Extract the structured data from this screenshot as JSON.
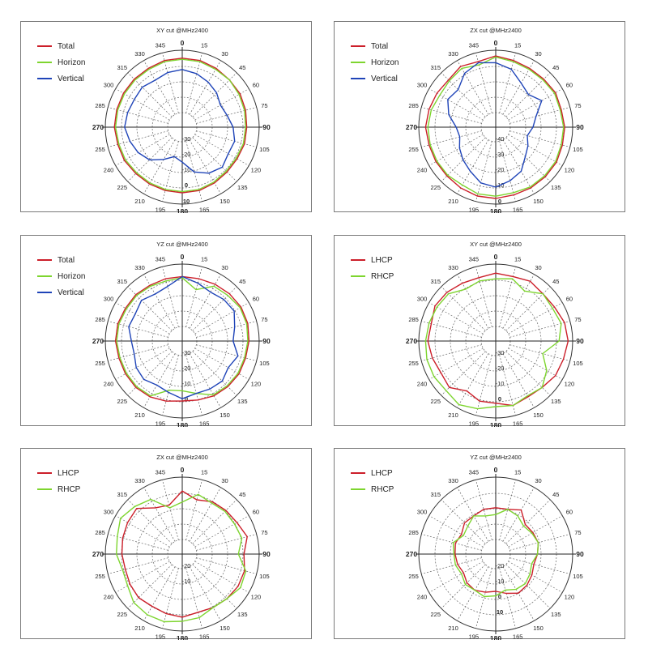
{
  "colors": {
    "total": "#cc1f2a",
    "horizon": "#7ed52f",
    "vertical": "#1f44b8",
    "lhcp": "#cc1f2a",
    "rhcp": "#7ed52f"
  },
  "chart_data": [
    {
      "type": "polar",
      "title": "XY cut @MHz2400",
      "radial_ticks": [
        "-30",
        "-20",
        "-10",
        "0",
        "10"
      ],
      "angle_labels": [
        "0",
        "15",
        "30",
        "45",
        "60",
        "75",
        "90",
        "105",
        "120",
        "135",
        "150",
        "165",
        "180",
        "195",
        "210",
        "225",
        "240",
        "255",
        "270",
        "285",
        "300",
        "315",
        "330",
        "345"
      ],
      "rmin": -40,
      "rmax": 15,
      "series": [
        {
          "name": "Total",
          "color": "#cc1f2a",
          "values": [
            8,
            8,
            7,
            6,
            6,
            5,
            4,
            4,
            3,
            3,
            4,
            5,
            5,
            5,
            5,
            5,
            6,
            6,
            7,
            7,
            7,
            7,
            7,
            8
          ]
        },
        {
          "name": "Horizon",
          "color": "#7ed52f",
          "values": [
            7,
            7,
            6,
            6,
            5,
            4,
            3,
            3,
            2,
            2,
            3,
            4,
            4,
            4,
            4,
            4,
            5,
            5,
            6,
            6,
            6,
            6,
            6,
            7
          ]
        },
        {
          "name": "Vertical",
          "color": "#1f44b8",
          "values": [
            -2,
            -4,
            -7,
            -10,
            -14,
            -12,
            -8,
            -5,
            -6,
            -3,
            -6,
            -12,
            -22,
            -26,
            -20,
            -12,
            -8,
            -5,
            -2,
            -3,
            -4,
            -3,
            -5,
            -3
          ]
        }
      ]
    },
    {
      "type": "polar",
      "title": "ZX cut @MHz2400",
      "radial_ticks": [
        "-40",
        "-30",
        "-20",
        "-10",
        "0"
      ],
      "angle_labels": [
        "0",
        "15",
        "30",
        "45",
        "60",
        "75",
        "90",
        "105",
        "120",
        "135",
        "150",
        "165",
        "180",
        "195",
        "210",
        "225",
        "240",
        "255",
        "270",
        "285",
        "300",
        "315",
        "330",
        "345"
      ],
      "rmin": -50,
      "rmax": 5,
      "series": [
        {
          "name": "Total",
          "color": "#cc1f2a",
          "values": [
            0,
            -2,
            -3,
            -3,
            -2,
            -3,
            -2,
            -2,
            -1,
            -1,
            -1,
            -1,
            0,
            0,
            -1,
            -2,
            -2,
            -2,
            -1,
            -2,
            -3,
            -4,
            -1,
            -3
          ]
        },
        {
          "name": "Horizon",
          "color": "#7ed52f",
          "values": [
            -1,
            -3,
            -4,
            -4,
            -3,
            -4,
            -3,
            -3,
            -2,
            -2,
            -2,
            -3,
            -2,
            -2,
            -4,
            -3,
            -3,
            -3,
            -3,
            -4,
            -6,
            -5,
            -3,
            -6
          ]
        },
        {
          "name": "Vertical",
          "color": "#1f44b8",
          "values": [
            -6,
            -10,
            -18,
            -22,
            -16,
            -26,
            -30,
            -34,
            -30,
            -26,
            -18,
            -14,
            -10,
            -12,
            -18,
            -22,
            -26,
            -30,
            -28,
            -20,
            -14,
            -16,
            -8,
            -4
          ]
        }
      ]
    },
    {
      "type": "polar",
      "title": "YZ cut @MHz2400",
      "radial_ticks": [
        "-30",
        "-20",
        "-10",
        "0"
      ],
      "angle_labels": [
        "0",
        "15",
        "30",
        "45",
        "60",
        "75",
        "90",
        "105",
        "120",
        "135",
        "150",
        "165",
        "180",
        "195",
        "210",
        "225",
        "240",
        "255",
        "270",
        "285",
        "300",
        "315",
        "330",
        "345"
      ],
      "rmin": -40,
      "rmax": 15,
      "series": [
        {
          "name": "Total",
          "color": "#cc1f2a",
          "values": [
            4,
            4,
            5,
            6,
            7,
            7,
            6,
            5,
            5,
            4,
            3,
            1,
            0,
            2,
            4,
            5,
            5,
            5,
            6,
            6,
            5,
            5,
            4,
            4
          ]
        },
        {
          "name": "Horizon",
          "color": "#7ed52f",
          "values": [
            3,
            -6,
            3,
            4,
            6,
            6,
            5,
            4,
            4,
            3,
            2,
            -5,
            -9,
            -8,
            3,
            4,
            4,
            4,
            5,
            5,
            4,
            4,
            3,
            2
          ]
        },
        {
          "name": "Vertical",
          "color": "#1f44b8",
          "values": [
            4,
            0,
            -3,
            -1,
            0,
            -5,
            -8,
            -2,
            -6,
            -3,
            -4,
            -5,
            -2,
            -6,
            -8,
            -5,
            -6,
            -9,
            -8,
            -4,
            -5,
            -2,
            -5,
            -3
          ]
        }
      ]
    },
    {
      "type": "polar",
      "title": "XY cut @MHz2400",
      "radial_ticks": [
        "-30",
        "-20",
        "-10",
        "0"
      ],
      "angle_labels": [
        "0",
        "15",
        "30",
        "45",
        "60",
        "75",
        "90",
        "105",
        "120",
        "135",
        "150",
        "165",
        "180",
        "195",
        "210",
        "225",
        "240",
        "255",
        "270",
        "285",
        "300",
        "315",
        "330",
        "345"
      ],
      "rmin": -40,
      "rmax": 15,
      "series": [
        {
          "name": "LHCP",
          "color": "#cc1f2a",
          "values": [
            7,
            6,
            8,
            6,
            7,
            10,
            11,
            9,
            8,
            5,
            4,
            6,
            2,
            2,
            -2,
            5,
            3,
            5,
            7,
            6,
            9,
            8,
            6,
            5
          ]
        },
        {
          "name": "RHCP",
          "color": "#7ed52f",
          "values": [
            2,
            4,
            -2,
            6,
            5,
            7,
            3,
            -10,
            -1,
            5,
            3,
            6,
            5,
            9,
            12,
            9,
            10,
            10,
            9,
            8,
            7,
            6,
            0,
            2
          ]
        }
      ]
    },
    {
      "type": "polar",
      "title": "ZX cut @MHz2400",
      "radial_ticks": [
        "-20",
        "-10"
      ],
      "angle_labels": [
        "0",
        "15",
        "30",
        "45",
        "60",
        "75",
        "90",
        "105",
        "120",
        "135",
        "150",
        "165",
        "180",
        "195",
        "210",
        "225",
        "240",
        "255",
        "270",
        "285",
        "300",
        "315",
        "330",
        "345"
      ],
      "rmin": -30,
      "rmax": 15,
      "series": [
        {
          "name": "LHCP",
          "color": "#cc1f2a",
          "values": [
            5,
            0,
            3,
            4,
            5,
            8,
            4,
            6,
            6,
            5,
            4,
            3,
            5,
            4,
            3,
            4,
            3,
            2,
            3,
            4,
            5,
            6,
            -2,
            -4
          ]
        },
        {
          "name": "RHCP",
          "color": "#7ed52f",
          "values": [
            -3,
            4,
            2,
            3,
            3,
            4,
            0,
            7,
            8,
            5,
            4,
            7,
            8,
            10,
            10,
            9,
            5,
            4,
            7,
            8,
            11,
            8,
            5,
            -6
          ]
        }
      ]
    },
    {
      "type": "polar",
      "title": "YZ cut @MHz2400",
      "radial_ticks": [
        "-20",
        "-10",
        "0",
        "10"
      ],
      "angle_labels": [
        "0",
        "15",
        "30",
        "45",
        "60",
        "75",
        "90",
        "105",
        "120",
        "135",
        "150",
        "165",
        "180",
        "195",
        "210",
        "225",
        "240",
        "255",
        "270",
        "285",
        "300",
        "315",
        "330",
        "345"
      ],
      "rmin": -30,
      "rmax": 25,
      "series": [
        {
          "name": "LHCP",
          "color": "#cc1f2a",
          "values": [
            -2,
            -2,
            2,
            -6,
            -5,
            -4,
            -6,
            -8,
            -6,
            -4,
            -3,
            -7,
            -10,
            -8,
            -6,
            -7,
            -10,
            -8,
            -7,
            -6,
            -8,
            -4,
            -4,
            -2
          ]
        },
        {
          "name": "RHCP",
          "color": "#7ed52f",
          "values": [
            -8,
            -2,
            -4,
            -8,
            -6,
            -4,
            -6,
            -10,
            -8,
            -6,
            -7,
            -10,
            -6,
            -4,
            -6,
            -5,
            -8,
            -6,
            -6,
            -4,
            -10,
            -8,
            -4,
            -8
          ]
        }
      ]
    }
  ]
}
